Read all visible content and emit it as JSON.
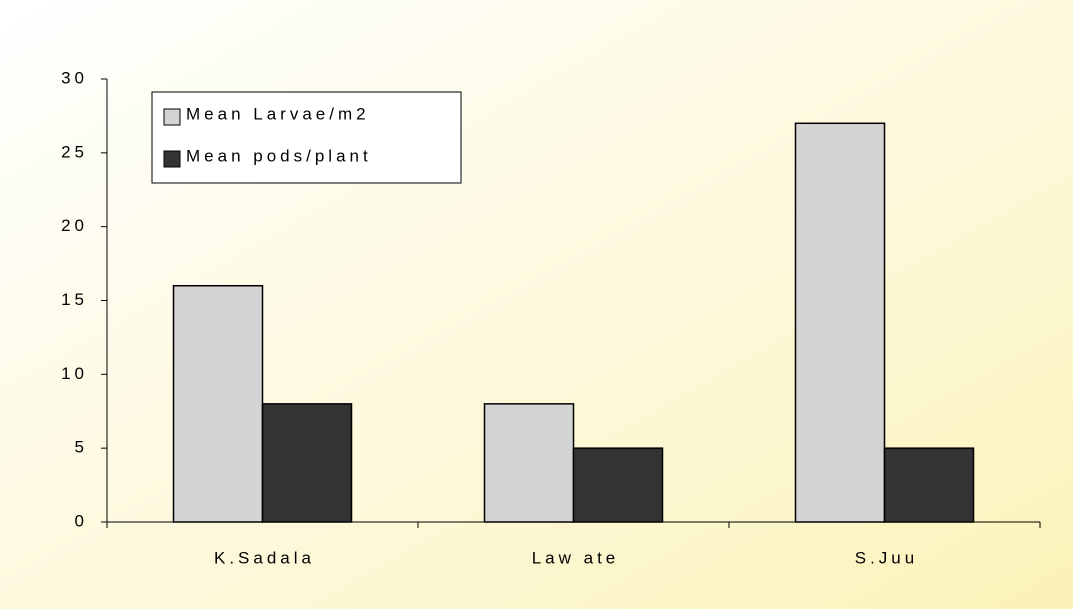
{
  "chart_data": {
    "type": "bar",
    "categories": [
      "K.Sadala",
      "Law ate",
      "S.Juu"
    ],
    "series": [
      {
        "name": "Mean Larvae/m2",
        "color": "#d4d4d4",
        "values": [
          16,
          8,
          27
        ]
      },
      {
        "name": "Mean pods/plant",
        "color": "#333333",
        "values": [
          8,
          5,
          5
        ]
      }
    ],
    "ylim": [
      0,
      30
    ],
    "yticks": [
      0,
      5,
      10,
      15,
      20,
      25,
      30
    ],
    "grid": false,
    "legend": "top-left"
  }
}
